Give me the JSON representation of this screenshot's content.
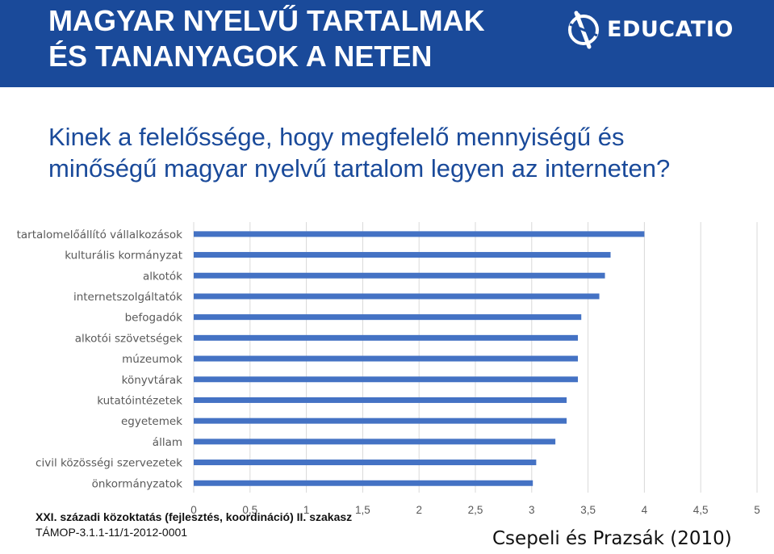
{
  "header": {
    "title_line1": "MAGYAR NYELVŰ TARTALMAK",
    "title_line2": "ÉS TANANYAGOK A NETEN",
    "logo_text": "EDUCATIO",
    "background_color": "#1a4a9a"
  },
  "question": "Kinek a felelőssége, hogy megfelelő mennyiségű és minőségű magyar nyelvű tartalom legyen az interneten?",
  "chart_data": {
    "type": "bar",
    "orientation": "horizontal",
    "categories": [
      "tartalomelőállító vállalkozások",
      "kulturális kormányzat",
      "alkotók",
      "internetszolgáltatók",
      "befogadók",
      "alkotói szövetségek",
      "múzeumok",
      "könyvtárak",
      "kutatóintézetek",
      "egyetemek",
      "állam",
      "civil közösségi szervezetek",
      "önkormányzatok"
    ],
    "values": [
      4.0,
      3.7,
      3.65,
      3.6,
      3.44,
      3.41,
      3.41,
      3.41,
      3.31,
      3.31,
      3.21,
      3.04,
      3.01
    ],
    "x_ticks": [
      "0",
      "0,5",
      "1",
      "1,5",
      "2",
      "2,5",
      "3",
      "3,5",
      "4",
      "4,5",
      "5"
    ],
    "xlim": [
      0,
      5
    ],
    "grid": true,
    "bar_color": "#4472c4",
    "grid_color": "#d9d9d9"
  },
  "footer": {
    "line1": "XXI. századi közoktatás (fejlesztés, koordináció) II. szakasz",
    "line2": "TÁMOP-3.1.1-11/1-2012-0001",
    "citation": "Csepeli és Prazsák (2010)"
  }
}
